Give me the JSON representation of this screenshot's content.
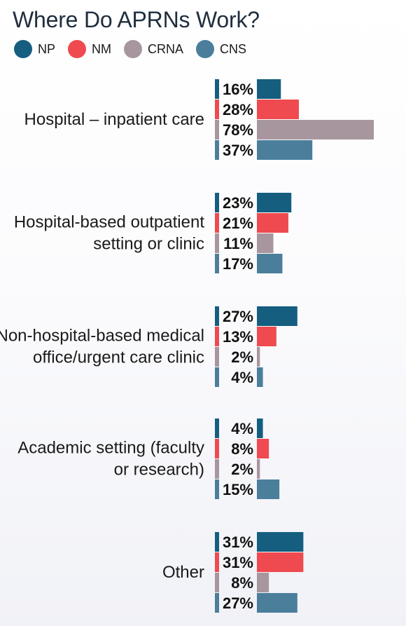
{
  "chart_data": {
    "type": "bar",
    "title": "Where Do APRNs Work?",
    "xlabel": "",
    "ylabel": "",
    "value_suffix": "%",
    "xlim": [
      0,
      78
    ],
    "grid": false,
    "legend_position": "top-left",
    "categories": [
      "Hospital – inpatient care",
      "Hospital-based outpatient setting or clinic",
      "Non-hospital-based medical office/urgent care clinic",
      "Academic setting (faculty or research)",
      "Other"
    ],
    "series": [
      {
        "name": "NP",
        "color": "#155e80",
        "values": [
          16,
          23,
          27,
          4,
          31
        ]
      },
      {
        "name": "NM",
        "color": "#ef4a4f",
        "values": [
          28,
          21,
          13,
          8,
          31
        ]
      },
      {
        "name": "CRNA",
        "color": "#a8969e",
        "values": [
          78,
          11,
          2,
          2,
          8
        ]
      },
      {
        "name": "CNS",
        "color": "#4a7e9b",
        "values": [
          37,
          17,
          4,
          15,
          27
        ]
      }
    ]
  }
}
